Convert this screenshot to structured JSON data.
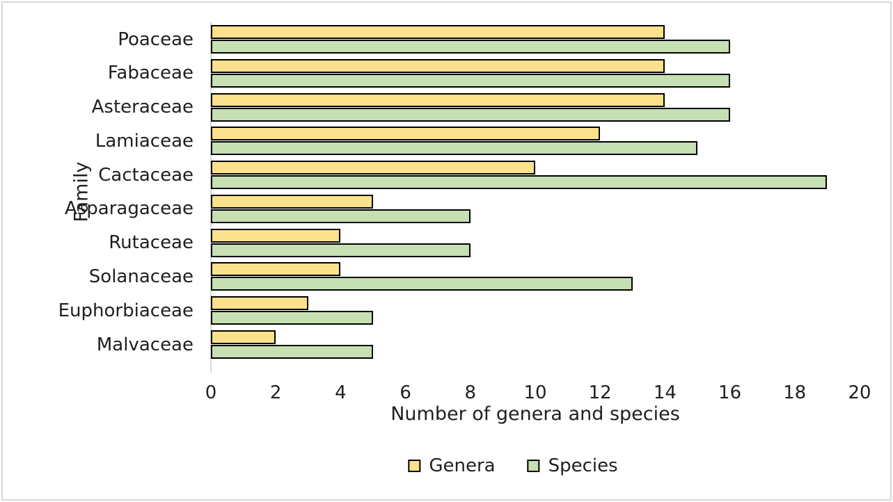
{
  "chart_data": {
    "type": "bar",
    "orientation": "horizontal",
    "title": "",
    "xlabel": "Number of genera and species",
    "ylabel": "Family",
    "categories": [
      "Poaceae",
      "Fabaceae",
      "Asteraceae",
      "Lamiaceae",
      "Cactaceae",
      "Asparagaceae",
      "Rutaceae",
      "Solanaceae",
      "Euphorbiaceae",
      "Malvaceae"
    ],
    "series": [
      {
        "name": "Genera",
        "color": "#FBE18C",
        "values": [
          14,
          14,
          14,
          12,
          10,
          5,
          4,
          4,
          3,
          2
        ]
      },
      {
        "name": "Species",
        "color": "#C6DFB3",
        "values": [
          16,
          16,
          16,
          15,
          19,
          8,
          8,
          13,
          5,
          5
        ]
      }
    ],
    "xlim": [
      0,
      20
    ],
    "xticks": [
      0,
      2,
      4,
      6,
      8,
      10,
      12,
      14,
      16,
      18,
      20
    ],
    "grid": false,
    "bar_border_color": "#000000",
    "axis_line_color": "#D9D9D9",
    "legend_position": "bottom"
  }
}
